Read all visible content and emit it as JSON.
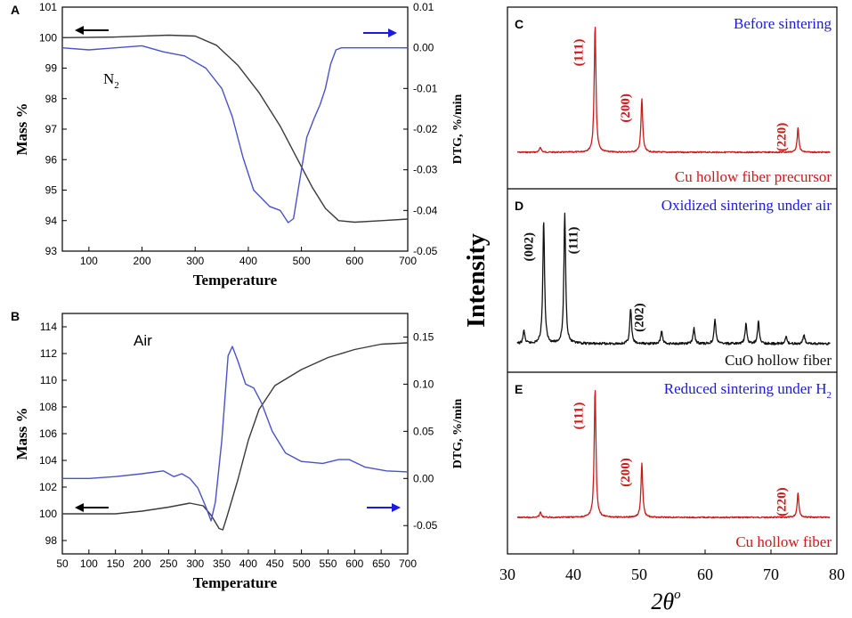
{
  "chart_data": [
    {
      "id": "A",
      "panel_label": "A",
      "type": "line",
      "xlabel": "Temperature",
      "ylabel_left": "Mass %",
      "ylabel_right": "DTG, %/min",
      "xlim": [
        50,
        700
      ],
      "ylim_left": [
        93,
        101
      ],
      "ylim_right": [
        -0.05,
        0.01
      ],
      "xticks": [
        100,
        200,
        300,
        400,
        500,
        600,
        700
      ],
      "yticks_left": [
        93,
        94,
        95,
        96,
        97,
        98,
        99,
        100,
        101
      ],
      "yticks_right": [
        "0.01",
        "0.00",
        "-0.01",
        "-0.02",
        "-0.03",
        "-0.04",
        "-0.05"
      ],
      "annotation": "N",
      "annotation_sub": "2",
      "series": [
        {
          "name": "Mass %",
          "axis": "left",
          "color": "#3a3a3a",
          "points": [
            [
              50,
              100.0
            ],
            [
              150,
              100.02
            ],
            [
              250,
              100.08
            ],
            [
              300,
              100.05
            ],
            [
              340,
              99.75
            ],
            [
              380,
              99.1
            ],
            [
              420,
              98.2
            ],
            [
              460,
              97.1
            ],
            [
              490,
              96.1
            ],
            [
              520,
              95.1
            ],
            [
              545,
              94.4
            ],
            [
              570,
              94.0
            ],
            [
              600,
              93.95
            ],
            [
              650,
              94.0
            ],
            [
              700,
              94.05
            ]
          ]
        },
        {
          "name": "DTG",
          "axis": "right",
          "color": "#4a52c8",
          "points": [
            [
              50,
              0.0
            ],
            [
              100,
              -0.0005
            ],
            [
              150,
              0.0
            ],
            [
              200,
              0.0005
            ],
            [
              240,
              -0.001
            ],
            [
              280,
              -0.002
            ],
            [
              320,
              -0.005
            ],
            [
              350,
              -0.01
            ],
            [
              370,
              -0.017
            ],
            [
              390,
              -0.027
            ],
            [
              410,
              -0.035
            ],
            [
              440,
              -0.039
            ],
            [
              460,
              -0.04
            ],
            [
              475,
              -0.043
            ],
            [
              485,
              -0.042
            ],
            [
              495,
              -0.034
            ],
            [
              510,
              -0.022
            ],
            [
              525,
              -0.017
            ],
            [
              535,
              -0.014
            ],
            [
              545,
              -0.01
            ],
            [
              555,
              -0.004
            ],
            [
              565,
              -0.0005
            ],
            [
              575,
              0.0
            ],
            [
              700,
              0.0
            ]
          ]
        }
      ]
    },
    {
      "id": "B",
      "panel_label": "B",
      "type": "line",
      "xlabel": "Temperature",
      "ylabel_left": "Mass %",
      "ylabel_right": "DTG, %/min",
      "xlim": [
        50,
        700
      ],
      "ylim_left": [
        97,
        115
      ],
      "ylim_right": [
        -0.08,
        0.175
      ],
      "xticks": [
        50,
        100,
        150,
        200,
        250,
        300,
        350,
        400,
        450,
        500,
        550,
        600,
        650,
        700
      ],
      "yticks_left": [
        98,
        100,
        102,
        104,
        106,
        108,
        110,
        112,
        114
      ],
      "yticks_right": [
        "-0.05",
        "0.00",
        "0.05",
        "0.10",
        "0.15"
      ],
      "annotation": "Air",
      "series": [
        {
          "name": "Mass %",
          "axis": "left",
          "color": "#3a3a3a",
          "points": [
            [
              50,
              100.0
            ],
            [
              150,
              100.0
            ],
            [
              200,
              100.2
            ],
            [
              250,
              100.5
            ],
            [
              290,
              100.8
            ],
            [
              315,
              100.6
            ],
            [
              330,
              99.9
            ],
            [
              345,
              98.9
            ],
            [
              352,
              98.8
            ],
            [
              360,
              99.8
            ],
            [
              380,
              102.5
            ],
            [
              400,
              105.5
            ],
            [
              420,
              107.8
            ],
            [
              450,
              109.6
            ],
            [
              500,
              110.8
            ],
            [
              550,
              111.7
            ],
            [
              600,
              112.3
            ],
            [
              650,
              112.7
            ],
            [
              700,
              112.8
            ]
          ]
        },
        {
          "name": "DTG",
          "axis": "right",
          "color": "#4a52c8",
          "points": [
            [
              50,
              0.0
            ],
            [
              100,
              0.0
            ],
            [
              150,
              0.002
            ],
            [
              200,
              0.005
            ],
            [
              240,
              0.008
            ],
            [
              260,
              0.002
            ],
            [
              275,
              0.005
            ],
            [
              290,
              0.0
            ],
            [
              305,
              -0.01
            ],
            [
              320,
              -0.03
            ],
            [
              330,
              -0.045
            ],
            [
              338,
              -0.025
            ],
            [
              350,
              0.04
            ],
            [
              362,
              0.13
            ],
            [
              370,
              0.14
            ],
            [
              380,
              0.125
            ],
            [
              395,
              0.1
            ],
            [
              410,
              0.096
            ],
            [
              425,
              0.08
            ],
            [
              445,
              0.05
            ],
            [
              470,
              0.027
            ],
            [
              500,
              0.018
            ],
            [
              540,
              0.016
            ],
            [
              570,
              0.02
            ],
            [
              590,
              0.02
            ],
            [
              620,
              0.012
            ],
            [
              660,
              0.008
            ],
            [
              700,
              0.007
            ]
          ]
        }
      ]
    },
    {
      "id": "XRD",
      "type": "line",
      "xlabel": "2θ",
      "xlabel_sup": "o",
      "ylabel": "Intensity",
      "xlim": [
        30,
        80
      ],
      "xticks": [
        30,
        40,
        50,
        60,
        70,
        80
      ],
      "subplots": [
        {
          "panel_label": "C",
          "title": "Before sintering",
          "caption": "Cu hollow fiber precursor",
          "color": "#cc1a1a",
          "peaks": [
            [
              35.0,
              0.04
            ],
            [
              43.3,
              1.0
            ],
            [
              50.4,
              0.42
            ],
            [
              74.1,
              0.19
            ]
          ],
          "peak_labels": [
            {
              "x": 43.3,
              "label": "(111)"
            },
            {
              "x": 50.4,
              "label": "(200)"
            },
            {
              "x": 74.1,
              "label": "(220)"
            }
          ]
        },
        {
          "panel_label": "D",
          "title": "Oxidized sintering under air",
          "caption": "CuO hollow fiber",
          "color": "#111111",
          "peaks": [
            [
              32.5,
              0.1
            ],
            [
              35.5,
              0.95
            ],
            [
              38.7,
              1.0
            ],
            [
              48.7,
              0.27
            ],
            [
              53.4,
              0.1
            ],
            [
              58.3,
              0.12
            ],
            [
              61.5,
              0.19
            ],
            [
              66.2,
              0.15
            ],
            [
              68.1,
              0.17
            ],
            [
              72.3,
              0.05
            ],
            [
              75.0,
              0.07
            ]
          ],
          "peak_labels": [
            {
              "x": 35.5,
              "label": "(002)"
            },
            {
              "x": 38.7,
              "label": "(111)"
            },
            {
              "x": 48.7,
              "label": "(202)"
            }
          ]
        },
        {
          "panel_label": "E",
          "title": "Reduced sintering under H",
          "title_sub": "2",
          "caption": "Cu hollow fiber",
          "color": "#cc1a1a",
          "peaks": [
            [
              35.0,
              0.04
            ],
            [
              43.3,
              1.0
            ],
            [
              50.4,
              0.42
            ],
            [
              74.1,
              0.19
            ]
          ],
          "peak_labels": [
            {
              "x": 43.3,
              "label": "(111)"
            },
            {
              "x": 50.4,
              "label": "(200)"
            },
            {
              "x": 74.1,
              "label": "(220)"
            }
          ]
        }
      ]
    }
  ]
}
